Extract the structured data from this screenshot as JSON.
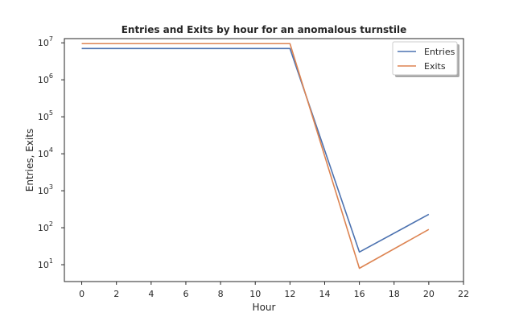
{
  "chart_data": {
    "type": "line",
    "title": "Entries and Exits by hour for an anomalous turnstile",
    "xlabel": "Hour",
    "ylabel": "Entries, Exits",
    "x": [
      0,
      12,
      16,
      20
    ],
    "series": [
      {
        "name": "Entries",
        "values": [
          7000000,
          7000000,
          22,
          230
        ],
        "color": "#4c72b0"
      },
      {
        "name": "Exits",
        "values": [
          9500000,
          9500000,
          8,
          90
        ],
        "color": "#dd8452"
      }
    ],
    "xlim": [
      -1.0,
      22.0
    ],
    "ylim": [
      3.5,
      13000000
    ],
    "yscale": "log",
    "xticks": [
      "0",
      "2",
      "4",
      "6",
      "8",
      "10",
      "12",
      "14",
      "16",
      "18",
      "20",
      "22"
    ],
    "yticks": [
      {
        "base": "10",
        "exp": "1",
        "value": 10
      },
      {
        "base": "10",
        "exp": "2",
        "value": 100
      },
      {
        "base": "10",
        "exp": "3",
        "value": 1000
      },
      {
        "base": "10",
        "exp": "4",
        "value": 10000
      },
      {
        "base": "10",
        "exp": "5",
        "value": 100000
      },
      {
        "base": "10",
        "exp": "6",
        "value": 1000000
      },
      {
        "base": "10",
        "exp": "7",
        "value": 10000000
      }
    ],
    "grid": false,
    "legend_position": "top-right"
  }
}
